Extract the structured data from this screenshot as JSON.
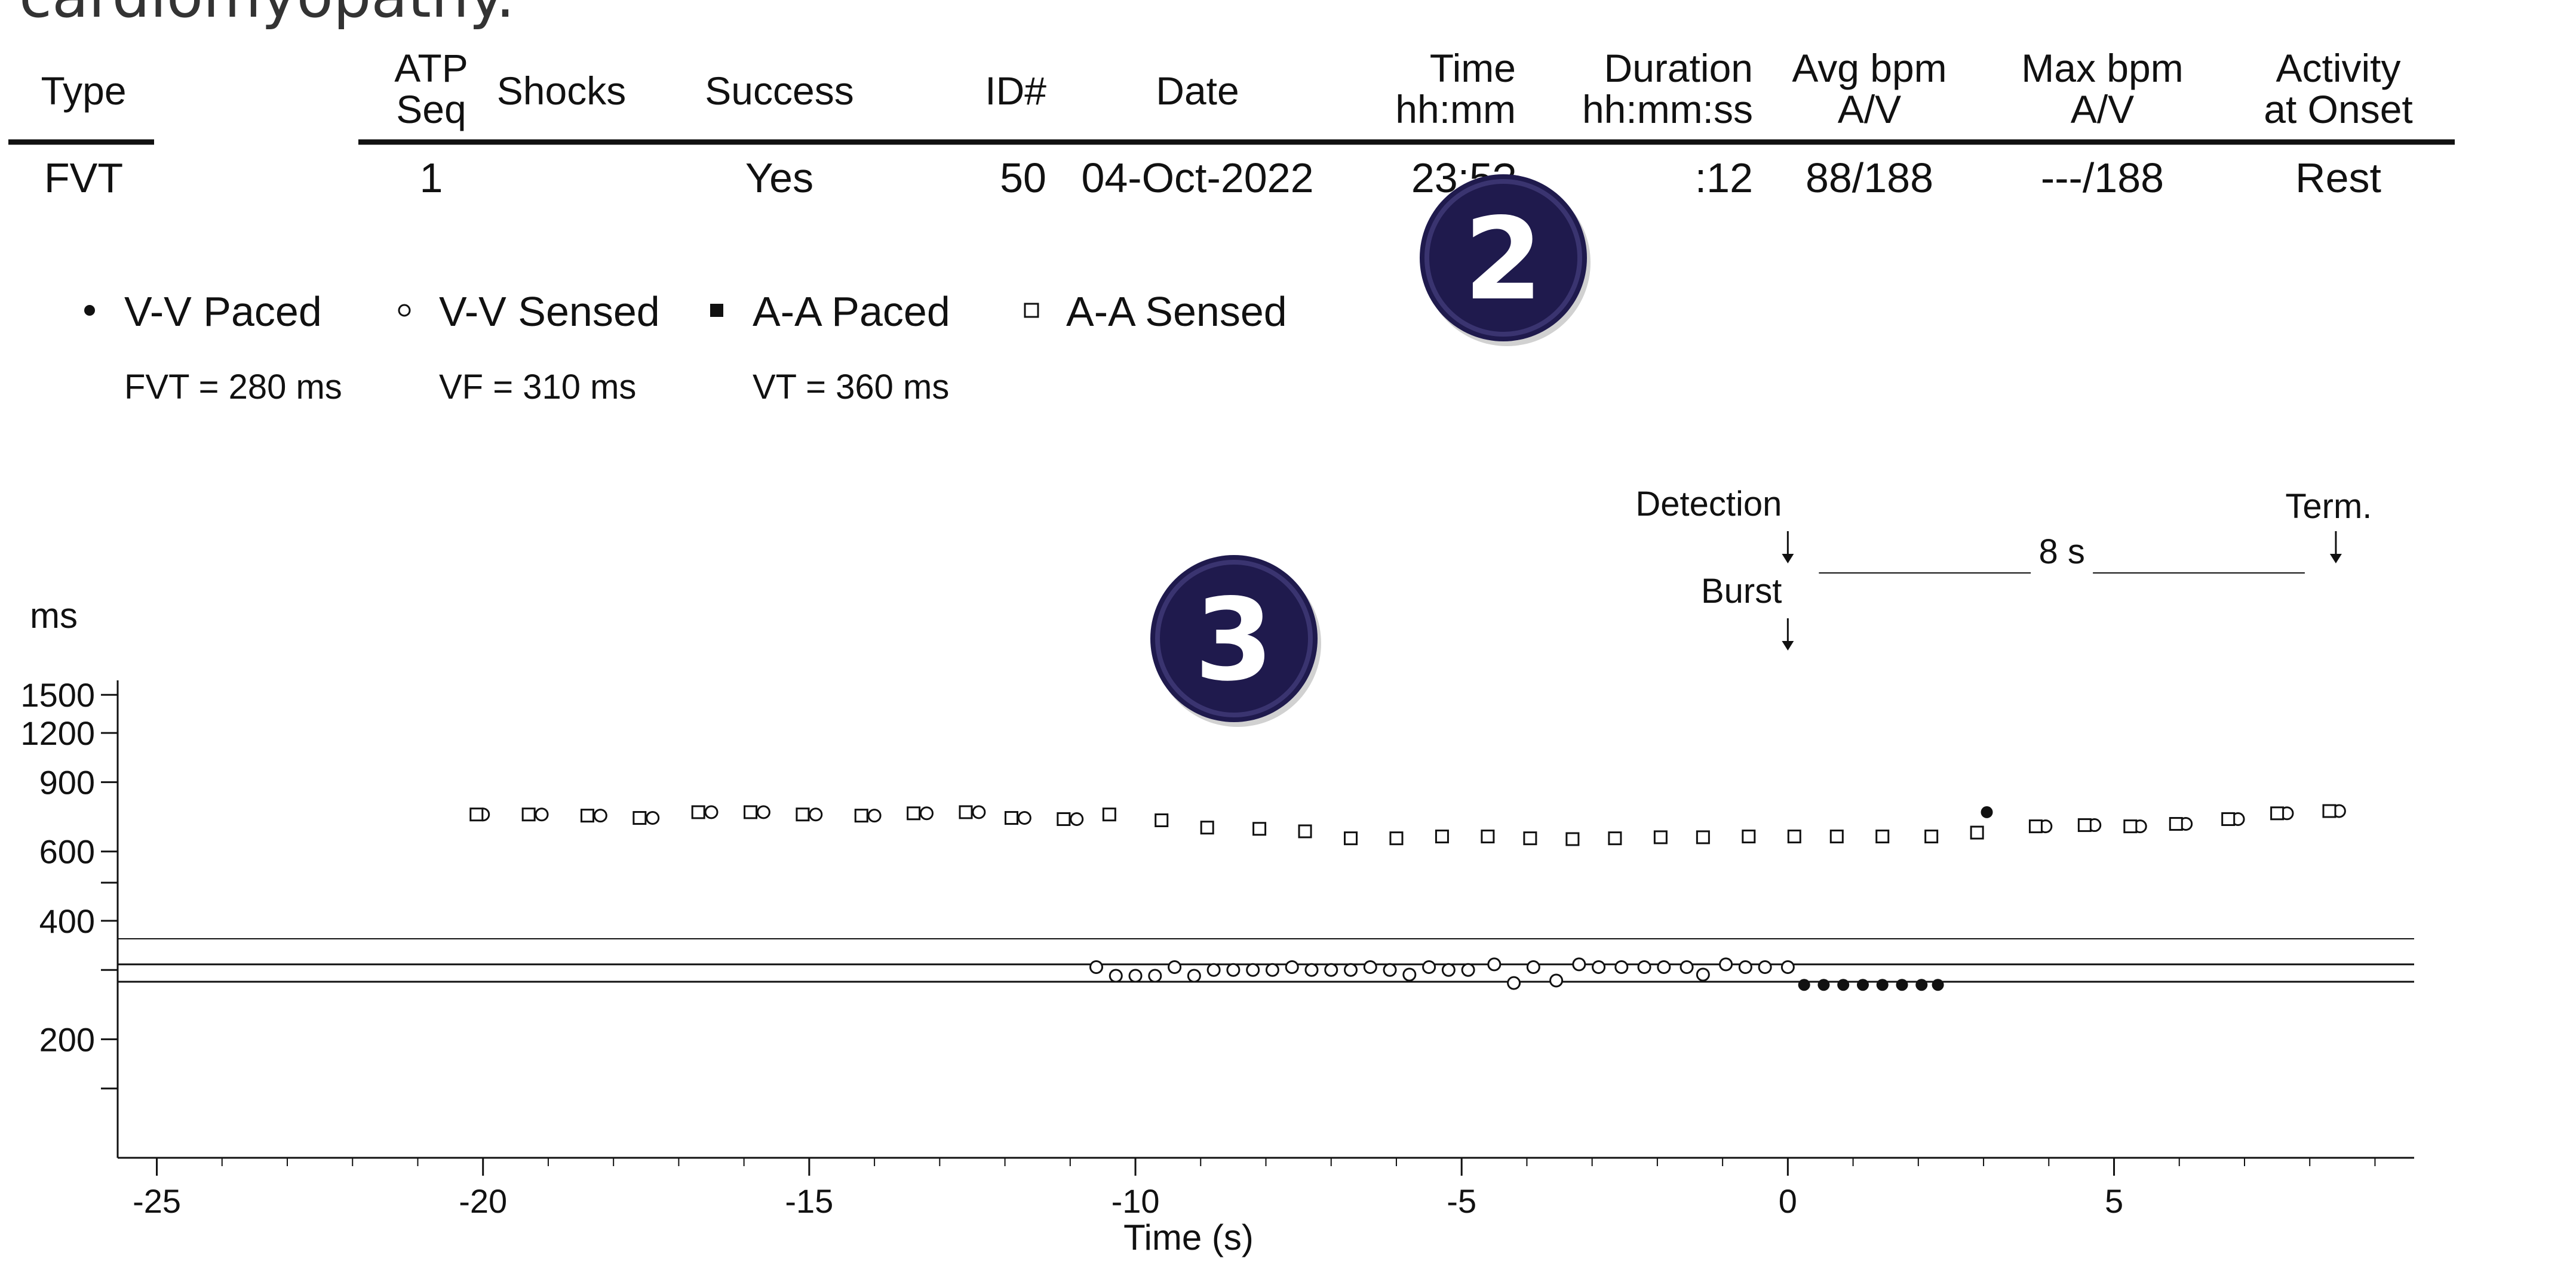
{
  "intro_text": "cardiomyopathy.",
  "colors": {
    "badge_fill": "#1f1a4d",
    "badge_text": "#ffffff",
    "ink": "#111111"
  },
  "episode_table": {
    "headers": [
      {
        "key": "type",
        "lines": [
          "Type"
        ]
      },
      {
        "key": "atp",
        "lines": [
          "ATP",
          "Seq"
        ]
      },
      {
        "key": "shocks",
        "lines": [
          "Shocks"
        ]
      },
      {
        "key": "success",
        "lines": [
          "Success"
        ]
      },
      {
        "key": "id",
        "lines": [
          "ID#"
        ]
      },
      {
        "key": "date",
        "lines": [
          "Date"
        ]
      },
      {
        "key": "time",
        "lines": [
          "Time",
          "hh:mm"
        ]
      },
      {
        "key": "duration",
        "lines": [
          "Duration",
          "hh:mm:ss"
        ]
      },
      {
        "key": "avg_bpm",
        "lines": [
          "Avg bpm",
          "A/V"
        ]
      },
      {
        "key": "max_bpm",
        "lines": [
          "Max bpm",
          "A/V"
        ]
      },
      {
        "key": "activity",
        "lines": [
          "Activity",
          "at Onset"
        ]
      }
    ],
    "row": {
      "type": "FVT",
      "atp": "1",
      "shocks": "",
      "success": "Yes",
      "id": "50",
      "date": "04-Oct-2022",
      "time": "23:5?",
      "duration": ":12",
      "avg_bpm": "88/188",
      "max_bpm": "---/188",
      "activity": "Rest"
    }
  },
  "badges": [
    {
      "name": "badge-2",
      "label": "2"
    },
    {
      "name": "badge-3",
      "label": "3"
    }
  ],
  "legend": [
    {
      "key": "vv_paced",
      "label": "V-V Paced",
      "marker": "filled-circle"
    },
    {
      "key": "vv_sensed",
      "label": "V-V Sensed",
      "marker": "open-circle"
    },
    {
      "key": "aa_paced",
      "label": "A-A Paced",
      "marker": "filled-square"
    },
    {
      "key": "aa_sensed",
      "label": "A-A Sensed",
      "marker": "open-square"
    }
  ],
  "zones": [
    {
      "label": "FVT = 280 ms",
      "value": 280
    },
    {
      "label": "VF = 310 ms",
      "value": 310
    },
    {
      "label": "VT = 360 ms",
      "value": 360
    }
  ],
  "annotations": {
    "detection": {
      "label": "Detection",
      "x": 0
    },
    "burst": {
      "label": "Burst",
      "x": 0
    },
    "term": {
      "label": "Term.",
      "x": 8.4
    },
    "duration_label": "8 s"
  },
  "chart_data": {
    "type": "scatter",
    "title": "",
    "xlabel": "Time (s)",
    "ylabel": "ms",
    "xlim": [
      -25.6,
      9.6
    ],
    "ylim": [
      100,
      1800
    ],
    "y_scale": "log",
    "x_ticks": [
      -25,
      -20,
      -15,
      -10,
      -5,
      0,
      5
    ],
    "x_tick_labels": [
      "-25",
      "-20",
      "-15",
      "-10",
      "-5",
      "0",
      "5"
    ],
    "y_ticks": [
      200,
      400,
      600,
      900,
      1200,
      1500
    ],
    "y_tick_labels": [
      "200",
      "400",
      "600",
      "900",
      "1200",
      "1500"
    ],
    "y_minor_ticks": [
      150,
      300,
      500
    ],
    "grid": false,
    "legend_position": "top-left",
    "series": [
      {
        "name": "V-V Paced",
        "marker": "filled-circle",
        "points": [
          {
            "x": 0.25,
            "y": 275
          },
          {
            "x": 0.55,
            "y": 275
          },
          {
            "x": 0.85,
            "y": 275
          },
          {
            "x": 1.15,
            "y": 275
          },
          {
            "x": 1.45,
            "y": 275
          },
          {
            "x": 1.75,
            "y": 275
          },
          {
            "x": 2.05,
            "y": 275
          },
          {
            "x": 2.3,
            "y": 275
          },
          {
            "x": 3.05,
            "y": 755
          }
        ]
      },
      {
        "name": "V-V Sensed",
        "marker": "open-circle",
        "points": [
          {
            "x": -20,
            "y": 745
          },
          {
            "x": -19.1,
            "y": 745
          },
          {
            "x": -18.2,
            "y": 740
          },
          {
            "x": -17.4,
            "y": 730
          },
          {
            "x": -16.5,
            "y": 755
          },
          {
            "x": -15.7,
            "y": 755
          },
          {
            "x": -14.9,
            "y": 745
          },
          {
            "x": -14.0,
            "y": 740
          },
          {
            "x": -13.2,
            "y": 750
          },
          {
            "x": -12.4,
            "y": 755
          },
          {
            "x": -11.7,
            "y": 730
          },
          {
            "x": -10.9,
            "y": 725
          },
          {
            "x": -10.6,
            "y": 305
          },
          {
            "x": -10.3,
            "y": 290
          },
          {
            "x": -10.0,
            "y": 290
          },
          {
            "x": -9.7,
            "y": 290
          },
          {
            "x": -9.4,
            "y": 305
          },
          {
            "x": -9.1,
            "y": 290
          },
          {
            "x": -8.8,
            "y": 300
          },
          {
            "x": -8.5,
            "y": 300
          },
          {
            "x": -8.2,
            "y": 300
          },
          {
            "x": -7.9,
            "y": 300
          },
          {
            "x": -7.6,
            "y": 305
          },
          {
            "x": -7.3,
            "y": 300
          },
          {
            "x": -7.0,
            "y": 300
          },
          {
            "x": -6.7,
            "y": 300
          },
          {
            "x": -6.4,
            "y": 305
          },
          {
            "x": -6.1,
            "y": 300
          },
          {
            "x": -5.8,
            "y": 292
          },
          {
            "x": -5.5,
            "y": 305
          },
          {
            "x": -5.2,
            "y": 300
          },
          {
            "x": -4.9,
            "y": 300
          },
          {
            "x": -4.5,
            "y": 310
          },
          {
            "x": -4.2,
            "y": 278
          },
          {
            "x": -3.9,
            "y": 305
          },
          {
            "x": -3.55,
            "y": 282
          },
          {
            "x": -3.2,
            "y": 310
          },
          {
            "x": -2.9,
            "y": 305
          },
          {
            "x": -2.55,
            "y": 305
          },
          {
            "x": -2.2,
            "y": 305
          },
          {
            "x": -1.9,
            "y": 305
          },
          {
            "x": -1.55,
            "y": 305
          },
          {
            "x": -1.3,
            "y": 292
          },
          {
            "x": -0.95,
            "y": 310
          },
          {
            "x": -0.65,
            "y": 305
          },
          {
            "x": -0.35,
            "y": 305
          },
          {
            "x": 0.0,
            "y": 305
          },
          {
            "x": 3.95,
            "y": 695
          },
          {
            "x": 4.7,
            "y": 700
          },
          {
            "x": 5.4,
            "y": 695
          },
          {
            "x": 6.1,
            "y": 705
          },
          {
            "x": 6.9,
            "y": 725
          },
          {
            "x": 7.65,
            "y": 750
          },
          {
            "x": 8.45,
            "y": 760
          }
        ]
      },
      {
        "name": "A-A Paced",
        "marker": "filled-square",
        "points": []
      },
      {
        "name": "A-A Sensed",
        "marker": "open-square",
        "points": [
          {
            "x": -20.1,
            "y": 745
          },
          {
            "x": -19.3,
            "y": 745
          },
          {
            "x": -18.4,
            "y": 740
          },
          {
            "x": -17.6,
            "y": 730
          },
          {
            "x": -16.7,
            "y": 755
          },
          {
            "x": -15.9,
            "y": 755
          },
          {
            "x": -15.1,
            "y": 745
          },
          {
            "x": -14.2,
            "y": 740
          },
          {
            "x": -13.4,
            "y": 750
          },
          {
            "x": -12.6,
            "y": 755
          },
          {
            "x": -11.9,
            "y": 730
          },
          {
            "x": -11.1,
            "y": 725
          },
          {
            "x": -10.4,
            "y": 745
          },
          {
            "x": -9.6,
            "y": 720
          },
          {
            "x": -8.9,
            "y": 690
          },
          {
            "x": -8.1,
            "y": 685
          },
          {
            "x": -7.4,
            "y": 675
          },
          {
            "x": -6.7,
            "y": 648
          },
          {
            "x": -6.0,
            "y": 648
          },
          {
            "x": -5.3,
            "y": 655
          },
          {
            "x": -4.6,
            "y": 655
          },
          {
            "x": -3.95,
            "y": 648
          },
          {
            "x": -3.3,
            "y": 645
          },
          {
            "x": -2.65,
            "y": 648
          },
          {
            "x": -1.95,
            "y": 652
          },
          {
            "x": -1.3,
            "y": 652
          },
          {
            "x": -0.6,
            "y": 655
          },
          {
            "x": 0.1,
            "y": 655
          },
          {
            "x": 0.75,
            "y": 655
          },
          {
            "x": 1.45,
            "y": 655
          },
          {
            "x": 2.2,
            "y": 655
          },
          {
            "x": 2.9,
            "y": 670
          },
          {
            "x": 3.8,
            "y": 695
          },
          {
            "x": 4.55,
            "y": 700
          },
          {
            "x": 5.25,
            "y": 695
          },
          {
            "x": 5.95,
            "y": 705
          },
          {
            "x": 6.75,
            "y": 725
          },
          {
            "x": 7.5,
            "y": 750
          },
          {
            "x": 8.3,
            "y": 760
          }
        ]
      }
    ]
  }
}
